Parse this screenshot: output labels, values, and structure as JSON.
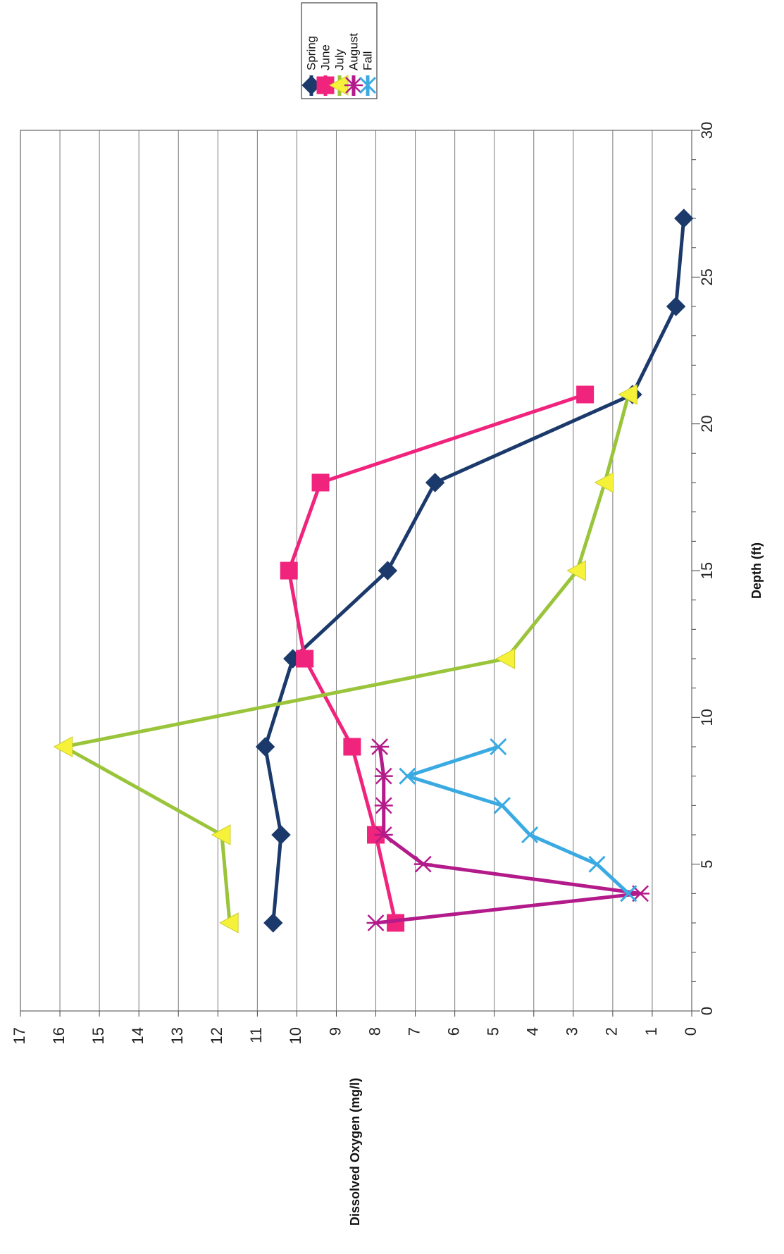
{
  "chart_data": {
    "type": "line",
    "xlabel": "Depth (ft)",
    "ylabel": "Dissolved Oxygen (mg/l)",
    "xlim": [
      0,
      30
    ],
    "ylim": [
      0,
      17
    ],
    "x_ticks": [
      "0",
      "5",
      "10",
      "15",
      "20",
      "25",
      "30"
    ],
    "y_ticks": [
      "0",
      "1",
      "2",
      "3",
      "4",
      "5",
      "6",
      "7",
      "8",
      "9",
      "10",
      "11",
      "12",
      "13",
      "14",
      "15",
      "16",
      "17"
    ],
    "grid": "horizontal major gridlines",
    "legend_position": "top-right",
    "orientation": "rotated 90 degrees counter-clockwise",
    "series": [
      {
        "name": "Spring",
        "color": "#1b3a6b",
        "marker": "diamond",
        "points": [
          [
            3,
            10.6
          ],
          [
            6,
            10.4
          ],
          [
            9,
            10.8
          ],
          [
            12,
            10.1
          ],
          [
            15,
            7.7
          ],
          [
            18,
            6.5
          ],
          [
            21,
            1.5
          ],
          [
            24,
            0.4
          ],
          [
            27,
            0.2
          ]
        ]
      },
      {
        "name": "June",
        "color": "#f0237d",
        "marker": "square",
        "points": [
          [
            3,
            7.5
          ],
          [
            6,
            8.0
          ],
          [
            9,
            8.6
          ],
          [
            12,
            9.8
          ],
          [
            15,
            10.2
          ],
          [
            18,
            9.4
          ],
          [
            21,
            2.7
          ]
        ]
      },
      {
        "name": "July",
        "color": "#9ac43a",
        "marker": "triangle",
        "marker_color": "#f6f23a",
        "points": [
          [
            3,
            11.7
          ],
          [
            6,
            11.9
          ],
          [
            9,
            15.9
          ],
          [
            12,
            4.7
          ],
          [
            15,
            2.9
          ],
          [
            18,
            2.2
          ],
          [
            21,
            1.6
          ]
        ]
      },
      {
        "name": "August",
        "color": "#b31a8a",
        "marker": "star",
        "points": [
          [
            3,
            8.0
          ],
          [
            4,
            1.3
          ],
          [
            5,
            6.8
          ],
          [
            6,
            7.8
          ],
          [
            7,
            7.8
          ],
          [
            8,
            7.8
          ],
          [
            9,
            7.9
          ]
        ]
      },
      {
        "name": "Fall",
        "color": "#3aaae3",
        "marker": "x",
        "points": [
          [
            4,
            1.6
          ],
          [
            5,
            2.4
          ],
          [
            6,
            4.1
          ],
          [
            7,
            4.8
          ],
          [
            8,
            7.2
          ],
          [
            9,
            4.9
          ]
        ]
      }
    ]
  }
}
